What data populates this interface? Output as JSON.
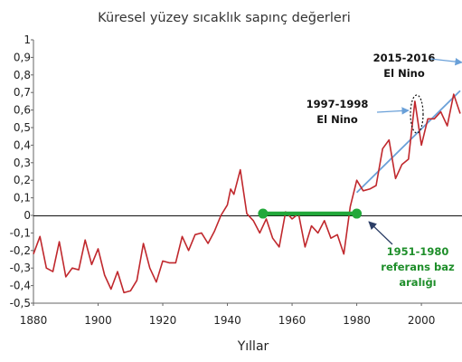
{
  "chart_data": {
    "type": "line",
    "title": "Küresel yüzey sıcaklık sapınç değerleri",
    "xlabel": "Yıllar",
    "ylabel": "",
    "xlim": [
      1880,
      2012
    ],
    "ylim": [
      -0.5,
      1.0
    ],
    "xticks": [
      "1880",
      "1900",
      "1920",
      "1940",
      "1960",
      "1980",
      "2000"
    ],
    "yticks": [
      "-0,5",
      "-0,4",
      "-0,3",
      "-0,2",
      "-0,1",
      "0",
      "0,1",
      "0,2",
      "0,3",
      "0,4",
      "0,5",
      "0,6",
      "0,7",
      "0,8",
      "0,9",
      "1"
    ],
    "grid": false,
    "series": [
      {
        "color": "#c0282d",
        "x": [
          1880,
          1882,
          1884,
          1886,
          1888,
          1890,
          1892,
          1894,
          1896,
          1898,
          1900,
          1902,
          1904,
          1906,
          1908,
          1910,
          1912,
          1914,
          1916,
          1918,
          1920,
          1922,
          1924,
          1926,
          1928,
          1930,
          1932,
          1934,
          1936,
          1938,
          1940,
          1941,
          1942,
          1944,
          1946,
          1948,
          1950,
          1952,
          1954,
          1956,
          1958,
          1960,
          1962,
          1964,
          1966,
          1968,
          1970,
          1972,
          1974,
          1976,
          1978,
          1980,
          1982,
          1984,
          1986,
          1988,
          1990,
          1992,
          1994,
          1996,
          1998,
          2000,
          2002,
          2004,
          2006,
          2008,
          2010,
          2012
        ],
        "values": [
          -0.22,
          -0.12,
          -0.3,
          -0.32,
          -0.15,
          -0.35,
          -0.3,
          -0.31,
          -0.14,
          -0.28,
          -0.19,
          -0.34,
          -0.42,
          -0.32,
          -0.44,
          -0.43,
          -0.37,
          -0.16,
          -0.3,
          -0.38,
          -0.26,
          -0.27,
          -0.27,
          -0.12,
          -0.2,
          -0.11,
          -0.1,
          -0.16,
          -0.09,
          0.0,
          0.06,
          0.15,
          0.12,
          0.26,
          0.01,
          -0.03,
          -0.1,
          -0.02,
          -0.13,
          -0.18,
          0.02,
          -0.02,
          0.01,
          -0.18,
          -0.06,
          -0.1,
          -0.03,
          -0.13,
          -0.11,
          -0.22,
          0.05,
          0.2,
          0.14,
          0.15,
          0.17,
          0.38,
          0.43,
          0.21,
          0.29,
          0.32,
          0.65,
          0.4,
          0.55,
          0.55,
          0.59,
          0.51,
          0.69,
          0.58
        ]
      }
    ],
    "trend_line": {
      "x": [
        1980,
        2012
      ],
      "values": [
        0.13,
        0.71
      ],
      "color": "#6aa0d8"
    },
    "baseline": {
      "x": [
        1951,
        1980
      ],
      "values": [
        0.01,
        0.01
      ],
      "color": "#22a83a"
    },
    "annotations": [
      {
        "lines": [
          "2015-2016",
          "El Nino"
        ],
        "color": "#111111"
      },
      {
        "lines": [
          "1997-1998",
          "El Nino"
        ],
        "color": "#111111"
      },
      {
        "lines": [
          "1951-1980",
          "referans baz",
          "aralığı"
        ],
        "color": "#1e8e2a"
      }
    ]
  }
}
